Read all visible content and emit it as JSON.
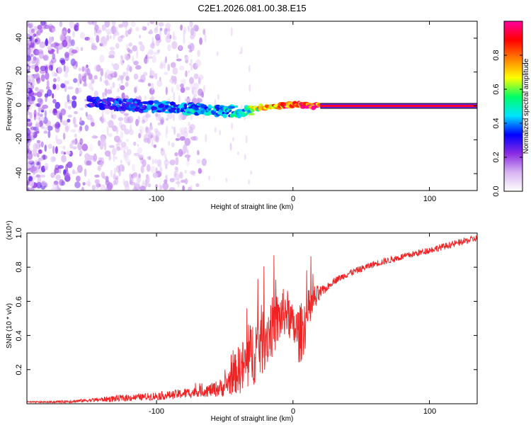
{
  "chart_data": [
    {
      "type": "heatmap",
      "title": "C2E1.2026.081.00.38.E15",
      "xlabel": "Height of straight line (km)",
      "ylabel": "Frequency (Hz)",
      "xlim": [
        -195,
        135
      ],
      "ylim": [
        -50,
        50
      ],
      "x_ticks": [
        -100,
        0,
        100
      ],
      "x_tick_labels": [
        "-100",
        "0",
        "100"
      ],
      "y_ticks": [
        -40,
        -20,
        0,
        20,
        40
      ],
      "y_tick_labels": [
        "-40",
        "-20",
        "0",
        "20",
        "40"
      ],
      "colorbar": {
        "label": "Normalized spectral amplitude",
        "range": [
          0,
          1
        ],
        "ticks": [
          0.0,
          0.2,
          0.4,
          0.6,
          0.8
        ],
        "tick_labels": [
          "0.0",
          "0.2",
          "0.4",
          "0.6",
          "0.8"
        ],
        "colors": [
          "#ffffff",
          "#d8b4f2",
          "#8a2be2",
          "#0000ff",
          "#00e5ff",
          "#00ff66",
          "#ffff00",
          "#ff8000",
          "#ff0000",
          "#ff00a0"
        ]
      },
      "series": [
        {
          "name": "dominant frequency ridge",
          "x": [
            -150,
            -130,
            -110,
            -90,
            -70,
            -50,
            -35,
            -25,
            -10,
            0,
            10,
            20,
            60,
            100,
            135
          ],
          "frequency": [
            2,
            1,
            0,
            -1,
            -2,
            -3,
            -3,
            -1,
            0,
            1,
            0,
            0,
            0,
            0,
            0
          ],
          "amplitude": [
            0.3,
            0.35,
            0.35,
            0.4,
            0.45,
            0.45,
            0.5,
            0.7,
            0.85,
            0.9,
            0.9,
            0.95,
            0.95,
            0.95,
            0.95
          ]
        }
      ]
    },
    {
      "type": "line",
      "xlabel": "Height of straight line (km)",
      "ylabel": "SNR (10 * v/v)",
      "multiplier_label": "(x10⁴)",
      "xlim": [
        -195,
        135
      ],
      "ylim": [
        0,
        1.0
      ],
      "x_ticks": [
        -100,
        0,
        100
      ],
      "x_tick_labels": [
        "-100",
        "0",
        "100"
      ],
      "y_ticks": [
        0.2,
        0.4,
        0.6,
        0.8,
        1.0
      ],
      "y_tick_labels": [
        "0.2",
        "0.4",
        "0.6",
        "0.8",
        "1.0"
      ],
      "series": [
        {
          "name": "SNR",
          "color": "#ee2222",
          "x": [
            -195,
            -180,
            -160,
            -150,
            -140,
            -130,
            -120,
            -110,
            -100,
            -90,
            -80,
            -70,
            -60,
            -50,
            -45,
            -40,
            -35,
            -30,
            -25,
            -20,
            -15,
            -10,
            -5,
            0,
            5,
            10,
            15,
            20,
            25,
            30,
            40,
            50,
            60,
            70,
            80,
            90,
            100,
            110,
            120,
            130,
            135
          ],
          "y": [
            0.01,
            0.01,
            0.015,
            0.02,
            0.025,
            0.03,
            0.035,
            0.04,
            0.045,
            0.05,
            0.06,
            0.07,
            0.08,
            0.1,
            0.15,
            0.2,
            0.22,
            0.3,
            0.35,
            0.4,
            0.45,
            0.5,
            0.55,
            0.45,
            0.4,
            0.5,
            0.6,
            0.65,
            0.68,
            0.72,
            0.76,
            0.79,
            0.82,
            0.84,
            0.86,
            0.88,
            0.9,
            0.92,
            0.94,
            0.96,
            0.97
          ],
          "noise_amplitude": [
            0.005,
            0.005,
            0.01,
            0.01,
            0.015,
            0.02,
            0.02,
            0.02,
            0.025,
            0.025,
            0.03,
            0.03,
            0.04,
            0.06,
            0.1,
            0.14,
            0.18,
            0.2,
            0.22,
            0.2,
            0.18,
            0.16,
            0.14,
            0.12,
            0.18,
            0.16,
            0.1,
            0.04,
            0.02,
            0.02,
            0.02,
            0.02,
            0.02,
            0.02,
            0.02,
            0.02,
            0.02,
            0.02,
            0.02,
            0.02,
            0.02
          ]
        }
      ]
    }
  ]
}
